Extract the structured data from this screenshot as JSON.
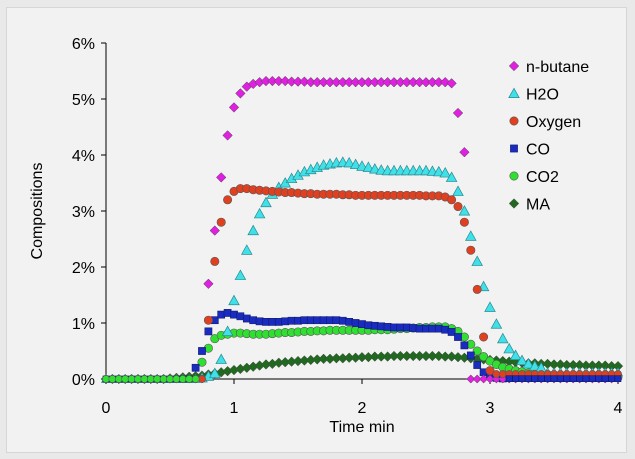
{
  "chart_data": {
    "type": "scatter",
    "title": "",
    "xlabel": "Time min",
    "ylabel": "Compositions",
    "xlim": [
      0,
      4
    ],
    "ylim": [
      0,
      6
    ],
    "x_ticks": [
      "0",
      "1",
      "2",
      "3",
      "4"
    ],
    "y_ticks": [
      "0%",
      "1%",
      "2%",
      "3%",
      "4%",
      "5%",
      "6%"
    ],
    "grid": false,
    "legend_position": "top-right",
    "series": [
      {
        "name": "n-butane",
        "marker": "diamond",
        "color": "#e020e0",
        "x": [
          0.8,
          0.85,
          0.9,
          0.95,
          1.0,
          1.05,
          1.1,
          1.15,
          1.2,
          1.25,
          1.3,
          1.35,
          1.4,
          1.45,
          1.5,
          1.55,
          1.6,
          1.65,
          1.7,
          1.75,
          1.8,
          1.85,
          1.9,
          1.95,
          2.0,
          2.05,
          2.1,
          2.15,
          2.2,
          2.25,
          2.3,
          2.35,
          2.4,
          2.45,
          2.5,
          2.55,
          2.6,
          2.65,
          2.7,
          2.75,
          2.8
        ],
        "y": [
          1.7,
          2.65,
          3.6,
          4.35,
          4.85,
          5.1,
          5.22,
          5.27,
          5.3,
          5.32,
          5.32,
          5.32,
          5.32,
          5.31,
          5.31,
          5.31,
          5.3,
          5.3,
          5.3,
          5.3,
          5.3,
          5.3,
          5.3,
          5.3,
          5.3,
          5.3,
          5.3,
          5.3,
          5.3,
          5.3,
          5.3,
          5.3,
          5.3,
          5.3,
          5.3,
          5.3,
          5.3,
          5.3,
          5.28,
          4.75,
          4.05
        ]
      },
      {
        "name": "H2O",
        "marker": "triangle",
        "color": "#40e0e8",
        "x": [
          0.75,
          0.8,
          0.85,
          0.9,
          0.95,
          1.0,
          1.05,
          1.1,
          1.15,
          1.2,
          1.25,
          1.3,
          1.35,
          1.4,
          1.45,
          1.5,
          1.55,
          1.6,
          1.65,
          1.7,
          1.75,
          1.8,
          1.85,
          1.9,
          1.95,
          2.0,
          2.05,
          2.1,
          2.15,
          2.2,
          2.25,
          2.3,
          2.35,
          2.4,
          2.45,
          2.5,
          2.55,
          2.6,
          2.65,
          2.7,
          2.75,
          2.8,
          2.85,
          2.9,
          2.95,
          3.0,
          3.05,
          3.1,
          3.15,
          3.2,
          3.25,
          3.3,
          3.35,
          3.4
        ],
        "y": [
          0.02,
          0.05,
          0.1,
          0.35,
          0.85,
          1.4,
          1.85,
          2.3,
          2.65,
          2.95,
          3.15,
          3.3,
          3.42,
          3.5,
          3.58,
          3.64,
          3.7,
          3.74,
          3.78,
          3.82,
          3.84,
          3.86,
          3.87,
          3.86,
          3.83,
          3.8,
          3.78,
          3.75,
          3.73,
          3.72,
          3.72,
          3.72,
          3.72,
          3.72,
          3.72,
          3.72,
          3.71,
          3.7,
          3.68,
          3.6,
          3.35,
          3.0,
          2.55,
          2.1,
          1.65,
          1.28,
          0.98,
          0.72,
          0.54,
          0.42,
          0.33,
          0.27,
          0.23,
          0.2
        ]
      },
      {
        "name": "Oxygen",
        "marker": "circle",
        "color": "#e04020",
        "x": [
          0.8,
          0.85,
          0.9,
          0.95,
          1.0,
          1.05,
          1.1,
          1.15,
          1.2,
          1.25,
          1.3,
          1.35,
          1.4,
          1.45,
          1.5,
          1.55,
          1.6,
          1.65,
          1.7,
          1.75,
          1.8,
          1.85,
          1.9,
          1.95,
          2.0,
          2.05,
          2.1,
          2.15,
          2.2,
          2.25,
          2.3,
          2.35,
          2.4,
          2.45,
          2.5,
          2.55,
          2.6,
          2.65,
          2.7,
          2.75,
          2.8,
          2.85,
          2.9,
          2.95,
          3.0
        ],
        "y": [
          1.05,
          2.1,
          2.8,
          3.2,
          3.35,
          3.4,
          3.4,
          3.38,
          3.37,
          3.36,
          3.35,
          3.34,
          3.33,
          3.33,
          3.32,
          3.31,
          3.31,
          3.3,
          3.3,
          3.3,
          3.3,
          3.29,
          3.29,
          3.28,
          3.28,
          3.28,
          3.28,
          3.28,
          3.28,
          3.28,
          3.28,
          3.28,
          3.28,
          3.28,
          3.27,
          3.27,
          3.27,
          3.25,
          3.2,
          3.08,
          2.8,
          2.3,
          1.6,
          0.75,
          0.15
        ]
      },
      {
        "name": "CO",
        "marker": "square",
        "color": "#1a2cc0",
        "x": [
          0.7,
          0.75,
          0.8,
          0.85,
          0.9,
          0.95,
          1.0,
          1.05,
          1.1,
          1.15,
          1.2,
          1.25,
          1.3,
          1.35,
          1.4,
          1.45,
          1.5,
          1.55,
          1.6,
          1.65,
          1.7,
          1.75,
          1.8,
          1.85,
          1.9,
          1.95,
          2.0,
          2.05,
          2.1,
          2.15,
          2.2,
          2.25,
          2.3,
          2.35,
          2.4,
          2.45,
          2.5,
          2.55,
          2.6,
          2.65,
          2.7,
          2.75,
          2.8,
          2.85,
          2.9,
          2.95,
          3.0,
          3.05,
          3.1
        ],
        "y": [
          0.2,
          0.5,
          0.85,
          1.05,
          1.15,
          1.18,
          1.15,
          1.12,
          1.08,
          1.05,
          1.03,
          1.02,
          1.02,
          1.02,
          1.03,
          1.04,
          1.04,
          1.05,
          1.05,
          1.05,
          1.05,
          1.05,
          1.05,
          1.04,
          1.02,
          1.0,
          0.98,
          0.96,
          0.95,
          0.94,
          0.93,
          0.92,
          0.92,
          0.92,
          0.91,
          0.9,
          0.9,
          0.9,
          0.9,
          0.88,
          0.84,
          0.75,
          0.6,
          0.42,
          0.25,
          0.12,
          0.05,
          0.02,
          0.01
        ]
      },
      {
        "name": "CO2",
        "marker": "circle",
        "color": "#30e030",
        "x": [
          0.75,
          0.8,
          0.85,
          0.9,
          0.95,
          1.0,
          1.05,
          1.1,
          1.15,
          1.2,
          1.25,
          1.3,
          1.35,
          1.4,
          1.45,
          1.5,
          1.55,
          1.6,
          1.65,
          1.7,
          1.75,
          1.8,
          1.85,
          1.9,
          1.95,
          2.0,
          2.05,
          2.1,
          2.15,
          2.2,
          2.25,
          2.3,
          2.35,
          2.4,
          2.45,
          2.5,
          2.55,
          2.6,
          2.65,
          2.7,
          2.75,
          2.8,
          2.85,
          2.9,
          2.95,
          3.0,
          3.05,
          3.1,
          3.15,
          3.2,
          3.25,
          3.3,
          3.35,
          3.4,
          3.45,
          3.5,
          3.55,
          3.6,
          3.65,
          3.7,
          3.75,
          3.8,
          3.85,
          3.9,
          3.95,
          4.0
        ],
        "y": [
          0.3,
          0.55,
          0.72,
          0.78,
          0.8,
          0.82,
          0.82,
          0.81,
          0.8,
          0.8,
          0.8,
          0.81,
          0.82,
          0.83,
          0.83,
          0.84,
          0.85,
          0.85,
          0.86,
          0.86,
          0.87,
          0.87,
          0.87,
          0.87,
          0.87,
          0.87,
          0.87,
          0.88,
          0.88,
          0.88,
          0.89,
          0.9,
          0.9,
          0.91,
          0.92,
          0.92,
          0.93,
          0.93,
          0.93,
          0.9,
          0.85,
          0.75,
          0.62,
          0.5,
          0.4,
          0.32,
          0.26,
          0.21,
          0.18,
          0.15,
          0.13,
          0.11,
          0.1,
          0.09,
          0.08,
          0.07,
          0.07,
          0.06,
          0.06,
          0.05,
          0.05,
          0.05,
          0.04,
          0.04,
          0.04,
          0.04
        ]
      },
      {
        "name": "MA",
        "marker": "diamond",
        "color": "#1f6a1f",
        "x": [
          0.0,
          0.05,
          0.1,
          0.15,
          0.2,
          0.25,
          0.3,
          0.35,
          0.4,
          0.45,
          0.5,
          0.55,
          0.6,
          0.65,
          0.7,
          0.75,
          0.8,
          0.85,
          0.9,
          0.95,
          1.0,
          1.05,
          1.1,
          1.15,
          1.2,
          1.25,
          1.3,
          1.35,
          1.4,
          1.45,
          1.5,
          1.55,
          1.6,
          1.65,
          1.7,
          1.75,
          1.8,
          1.85,
          1.9,
          1.95,
          2.0,
          2.05,
          2.1,
          2.15,
          2.2,
          2.25,
          2.3,
          2.35,
          2.4,
          2.45,
          2.5,
          2.55,
          2.6,
          2.65,
          2.7,
          2.75,
          2.8,
          2.85,
          2.9,
          2.95,
          3.0,
          3.05,
          3.1,
          3.15,
          3.2,
          3.25,
          3.3,
          3.35,
          3.4,
          3.45,
          3.5,
          3.55,
          3.6,
          3.65,
          3.7,
          3.75,
          3.8,
          3.85,
          3.9,
          3.95,
          4.0
        ],
        "y": [
          0.0,
          0.0,
          0.0,
          0.0,
          0.0,
          0.0,
          0.0,
          0.0,
          0.0,
          0.0,
          0.01,
          0.02,
          0.03,
          0.04,
          0.05,
          0.06,
          0.08,
          0.1,
          0.12,
          0.14,
          0.16,
          0.18,
          0.2,
          0.22,
          0.24,
          0.26,
          0.27,
          0.29,
          0.3,
          0.31,
          0.32,
          0.33,
          0.34,
          0.35,
          0.36,
          0.36,
          0.37,
          0.37,
          0.38,
          0.38,
          0.39,
          0.39,
          0.4,
          0.4,
          0.4,
          0.41,
          0.41,
          0.41,
          0.41,
          0.41,
          0.41,
          0.41,
          0.41,
          0.4,
          0.4,
          0.39,
          0.38,
          0.37,
          0.36,
          0.35,
          0.34,
          0.33,
          0.32,
          0.31,
          0.3,
          0.29,
          0.28,
          0.28,
          0.27,
          0.27,
          0.26,
          0.26,
          0.25,
          0.25,
          0.25,
          0.24,
          0.24,
          0.24,
          0.24,
          0.23,
          0.23
        ]
      }
    ]
  }
}
